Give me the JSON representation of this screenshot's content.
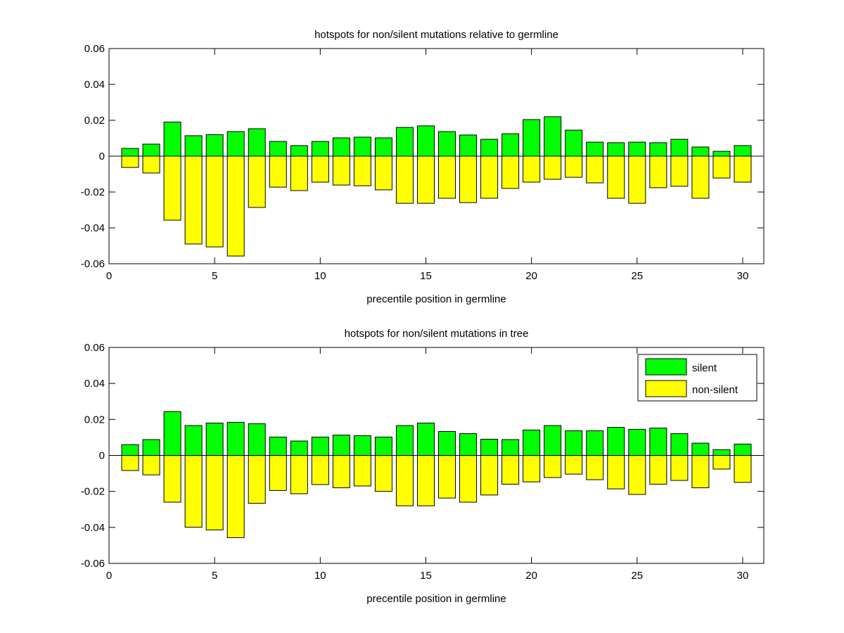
{
  "chart_data": [
    {
      "type": "bar",
      "title": "hotspots for non/silent mutations relative to germline",
      "xlabel": "precentile position in germline",
      "ylabel": "",
      "xlim": [
        0,
        31
      ],
      "ylim": [
        -0.06,
        0.06
      ],
      "xticks": [
        "0",
        "5",
        "10",
        "15",
        "20",
        "25",
        "30"
      ],
      "yticks": [
        "0.06",
        "0.04",
        "0.02",
        "0",
        "-0.02",
        "-0.04",
        "-0.06"
      ],
      "x": [
        1,
        2,
        3,
        4,
        5,
        6,
        7,
        8,
        9,
        10,
        11,
        12,
        13,
        14,
        15,
        16,
        17,
        18,
        19,
        20,
        21,
        22,
        23,
        24,
        25,
        26,
        27,
        28,
        29,
        30
      ],
      "series": [
        {
          "name": "silent",
          "color": "#00ff00",
          "values": [
            0.0043,
            0.0067,
            0.019,
            0.0114,
            0.012,
            0.0137,
            0.0153,
            0.0082,
            0.0059,
            0.0082,
            0.0102,
            0.0106,
            0.0102,
            0.016,
            0.0169,
            0.0137,
            0.0118,
            0.0094,
            0.0125,
            0.0204,
            0.022,
            0.0145,
            0.0078,
            0.0075,
            0.0078,
            0.0075,
            0.0094,
            0.0051,
            0.0027,
            0.0059
          ]
        },
        {
          "name": "non-silent",
          "color": "#ffff00",
          "values": [
            -0.0063,
            -0.0094,
            -0.0357,
            -0.049,
            -0.0506,
            -0.0557,
            -0.0286,
            -0.0173,
            -0.0192,
            -0.0145,
            -0.0161,
            -0.0165,
            -0.0188,
            -0.0263,
            -0.0263,
            -0.0235,
            -0.0259,
            -0.0235,
            -0.018,
            -0.0145,
            -0.0129,
            -0.0118,
            -0.0149,
            -0.0235,
            -0.0263,
            -0.0176,
            -0.0168,
            -0.0235,
            -0.0122,
            -0.0145
          ]
        }
      ],
      "legend": null
    },
    {
      "type": "bar",
      "title": "hotspots for non/silent mutations in tree",
      "xlabel": "precentile position in germline",
      "ylabel": "",
      "xlim": [
        0,
        31
      ],
      "ylim": [
        -0.06,
        0.06
      ],
      "xticks": [
        "0",
        "5",
        "10",
        "15",
        "20",
        "25",
        "30"
      ],
      "yticks": [
        "0.06",
        "0.04",
        "0.02",
        "0",
        "-0.02",
        "-0.04",
        "-0.06"
      ],
      "x": [
        1,
        2,
        3,
        4,
        5,
        6,
        7,
        8,
        9,
        10,
        11,
        12,
        13,
        14,
        15,
        16,
        17,
        18,
        19,
        20,
        21,
        22,
        23,
        24,
        25,
        26,
        27,
        28,
        29,
        30
      ],
      "series": [
        {
          "name": "silent",
          "color": "#00ff00",
          "values": [
            0.006,
            0.0088,
            0.0244,
            0.0166,
            0.018,
            0.0184,
            0.0176,
            0.0102,
            0.008,
            0.0102,
            0.0113,
            0.011,
            0.0102,
            0.0166,
            0.018,
            0.0133,
            0.0121,
            0.009,
            0.0088,
            0.0141,
            0.0166,
            0.0137,
            0.0137,
            0.0156,
            0.0145,
            0.0152,
            0.0121,
            0.0068,
            0.0032,
            0.0063
          ]
        },
        {
          "name": "non-silent",
          "color": "#ffff00",
          "values": [
            -0.0084,
            -0.0108,
            -0.026,
            -0.0399,
            -0.0414,
            -0.0457,
            -0.0266,
            -0.0195,
            -0.0213,
            -0.0162,
            -0.018,
            -0.017,
            -0.02,
            -0.028,
            -0.028,
            -0.0237,
            -0.026,
            -0.022,
            -0.016,
            -0.0147,
            -0.0123,
            -0.0104,
            -0.0135,
            -0.0186,
            -0.0217,
            -0.016,
            -0.0139,
            -0.018,
            -0.0076,
            -0.015
          ]
        }
      ],
      "legend": {
        "position": "top-right",
        "entries": [
          "silent",
          "non-silent"
        ]
      }
    }
  ]
}
